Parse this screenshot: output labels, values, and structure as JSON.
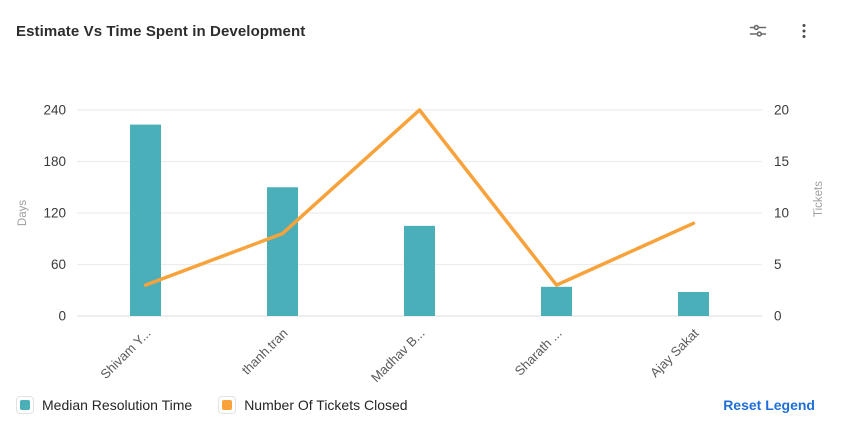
{
  "header": {
    "title": "Estimate Vs Time Spent in Development"
  },
  "chart_data": {
    "type": "combo-bar-line",
    "title": "Estimate Vs Time Spent in Development",
    "categories": [
      "Shivam Y...",
      "thanh.tran",
      "Madhav B...",
      "Sharath ...",
      "Ajay Sakat"
    ],
    "series": [
      {
        "name": "Median Resolution Time",
        "type": "bar",
        "axis": "left",
        "color": "#4AAFB9",
        "values": [
          223,
          150,
          105,
          34,
          28
        ]
      },
      {
        "name": "Number Of Tickets Closed",
        "type": "line",
        "axis": "right",
        "color": "#F7A23B",
        "values": [
          3,
          8,
          20,
          3,
          9
        ]
      }
    ],
    "left_axis": {
      "label": "Days",
      "ticks": [
        0,
        60,
        120,
        180,
        240
      ],
      "max": 240
    },
    "right_axis": {
      "label": "Tickets",
      "ticks": [
        0,
        5,
        10,
        15,
        20
      ],
      "max": 20
    },
    "grid": true,
    "legend_position": "bottom"
  },
  "legend": {
    "items": [
      {
        "label": "Median Resolution Time",
        "color": "#4AAFB9"
      },
      {
        "label": "Number Of Tickets Closed",
        "color": "#F7A23B"
      }
    ],
    "reset_label": "Reset Legend"
  },
  "colors": {
    "link": "#1E6FD9",
    "grid": "#EDEDED",
    "baseline": "#E3E3E3",
    "tick_text": "#3B3B3B",
    "axis_name": "#9E9E9E",
    "x_label": "#5A5A5A"
  }
}
